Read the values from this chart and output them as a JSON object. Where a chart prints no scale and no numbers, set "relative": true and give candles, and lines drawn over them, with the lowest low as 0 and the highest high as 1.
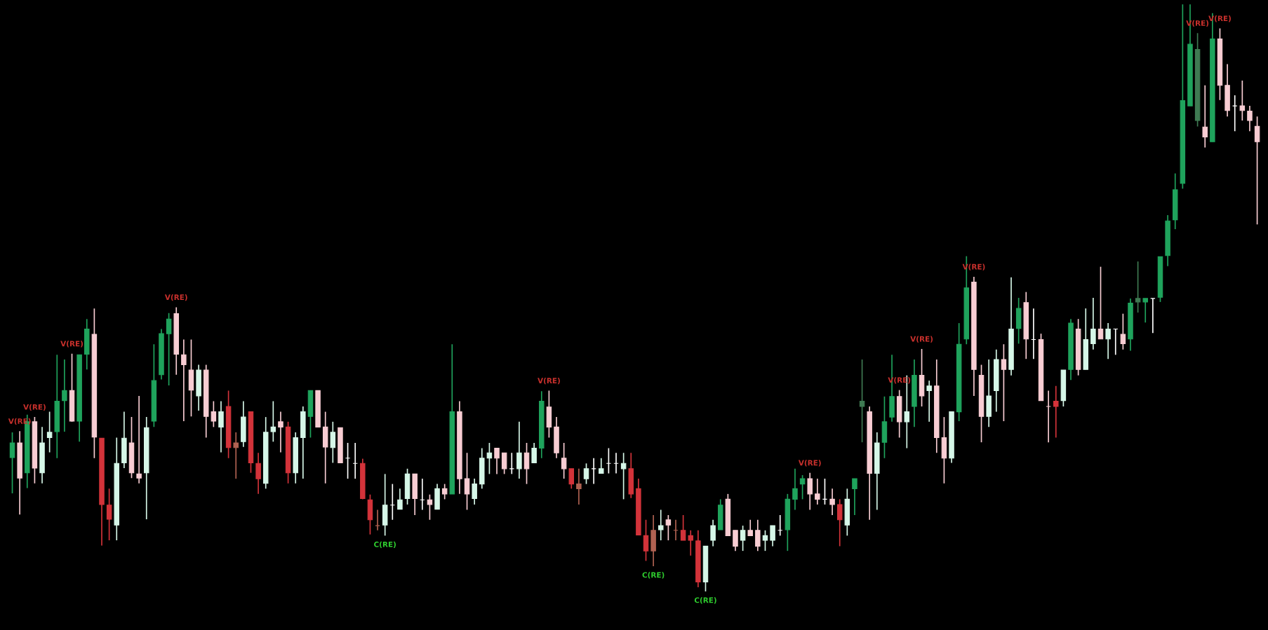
{
  "chart_data": {
    "type": "candlestick",
    "relative": true,
    "categories": [
      null,
      null,
      null,
      null,
      null,
      null,
      null,
      null,
      null,
      null,
      null,
      null,
      null,
      null,
      null,
      null,
      null,
      null,
      null,
      null,
      null,
      null,
      null,
      null,
      null,
      null,
      null,
      null,
      null,
      null,
      null,
      null,
      null,
      null,
      null,
      null,
      null,
      null,
      null,
      null,
      null,
      null,
      null,
      null,
      null,
      null,
      null,
      null,
      null,
      null,
      null,
      null,
      null,
      null,
      null,
      null,
      null,
      null,
      null,
      null,
      null,
      null,
      null,
      null,
      null,
      null,
      null,
      null,
      null,
      null,
      null,
      null,
      null,
      null,
      null,
      null,
      null,
      null,
      null,
      null,
      null,
      null,
      null,
      null,
      null,
      null,
      null,
      null,
      null,
      null,
      null,
      null,
      null,
      null,
      null,
      null,
      null,
      null,
      null,
      null,
      null,
      null,
      null,
      null,
      null,
      null,
      null,
      null,
      null,
      null,
      null,
      null,
      null,
      null,
      null,
      null,
      null,
      null,
      null,
      null,
      null,
      null,
      null,
      null,
      null,
      null,
      null,
      null,
      null,
      null,
      null,
      null,
      null,
      null,
      null,
      null,
      null,
      null,
      null,
      null,
      null,
      null,
      null,
      null,
      null,
      null,
      null,
      null,
      null,
      null,
      null,
      null,
      null,
      null,
      null,
      null,
      null,
      null,
      null,
      null,
      null,
      null,
      null,
      null,
      null,
      null,
      null,
      null
    ],
    "ohlc": [
      [
        0.228,
        0.271,
        0.167,
        0.253
      ],
      [
        0.253,
        0.273,
        0.131,
        0.193
      ],
      [
        0.202,
        0.301,
        0.176,
        0.289
      ],
      [
        0.289,
        0.297,
        0.184,
        0.21
      ],
      [
        0.202,
        0.28,
        0.184,
        0.253
      ],
      [
        0.262,
        0.306,
        0.237,
        0.271
      ],
      [
        0.272,
        0.403,
        0.227,
        0.324
      ],
      [
        0.325,
        0.395,
        0.272,
        0.342
      ],
      [
        0.342,
        0.405,
        0.289,
        0.29
      ],
      [
        0.29,
        0.403,
        0.255,
        0.403
      ],
      [
        0.404,
        0.464,
        0.378,
        0.447
      ],
      [
        0.438,
        0.482,
        0.227,
        0.263
      ],
      [
        0.261,
        0.261,
        0.078,
        0.148
      ],
      [
        0.147,
        0.175,
        0.087,
        0.123
      ],
      [
        0.113,
        0.262,
        0.087,
        0.218
      ],
      [
        0.219,
        0.306,
        0.21,
        0.261
      ],
      [
        0.253,
        0.297,
        0.193,
        0.202
      ],
      [
        0.2,
        0.333,
        0.184,
        0.193
      ],
      [
        0.202,
        0.297,
        0.123,
        0.279
      ],
      [
        0.29,
        0.421,
        0.28,
        0.359
      ],
      [
        0.369,
        0.447,
        0.361,
        0.439
      ],
      [
        0.439,
        0.474,
        0.351,
        0.464
      ],
      [
        0.473,
        0.484,
        0.369,
        0.404
      ],
      [
        0.403,
        0.429,
        0.29,
        0.386
      ],
      [
        0.377,
        0.429,
        0.298,
        0.343
      ],
      [
        0.333,
        0.386,
        0.308,
        0.377
      ],
      [
        0.377,
        0.386,
        0.262,
        0.298
      ],
      [
        0.306,
        0.324,
        0.28,
        0.29
      ],
      [
        0.28,
        0.324,
        0.237,
        0.306
      ],
      [
        0.315,
        0.342,
        0.227,
        0.245
      ],
      [
        0.253,
        0.271,
        0.192,
        0.245
      ],
      [
        0.255,
        0.324,
        0.246,
        0.297
      ],
      [
        0.306,
        0.306,
        0.202,
        0.219
      ],
      [
        0.218,
        0.236,
        0.166,
        0.192
      ],
      [
        0.184,
        0.297,
        0.175,
        0.271
      ],
      [
        0.272,
        0.324,
        0.255,
        0.28
      ],
      [
        0.289,
        0.306,
        0.237,
        0.28
      ],
      [
        0.28,
        0.289,
        0.184,
        0.202
      ],
      [
        0.202,
        0.271,
        0.184,
        0.262
      ],
      [
        0.262,
        0.315,
        0.192,
        0.306
      ],
      [
        0.298,
        0.342,
        0.262,
        0.342
      ],
      [
        0.342,
        0.342,
        0.28,
        0.28
      ],
      [
        0.28,
        0.306,
        0.184,
        0.246
      ],
      [
        0.245,
        0.289,
        0.219,
        0.271
      ],
      [
        0.279,
        0.279,
        0.219,
        0.219
      ],
      [
        0.227,
        0.253,
        0.192,
        0.227
      ],
      [
        0.218,
        0.253,
        0.192,
        0.218
      ],
      [
        0.218,
        0.226,
        0.157,
        0.158
      ],
      [
        0.156,
        0.165,
        0.097,
        0.122
      ],
      [
        0.112,
        0.139,
        0.104,
        0.112
      ],
      [
        0.113,
        0.2,
        0.095,
        0.147
      ],
      [
        0.147,
        0.183,
        0.122,
        0.147
      ],
      [
        0.14,
        0.175,
        0.14,
        0.156
      ],
      [
        0.158,
        0.209,
        0.148,
        0.2
      ],
      [
        0.2,
        0.2,
        0.13,
        0.158
      ],
      [
        0.156,
        0.192,
        0.139,
        0.156
      ],
      [
        0.156,
        0.165,
        0.122,
        0.148
      ],
      [
        0.14,
        0.183,
        0.14,
        0.175
      ],
      [
        0.175,
        0.183,
        0.157,
        0.166
      ],
      [
        0.166,
        0.421,
        0.166,
        0.306
      ],
      [
        0.306,
        0.324,
        0.166,
        0.192
      ],
      [
        0.192,
        0.236,
        0.139,
        0.166
      ],
      [
        0.158,
        0.192,
        0.148,
        0.183
      ],
      [
        0.183,
        0.244,
        0.175,
        0.227
      ],
      [
        0.227,
        0.253,
        0.2,
        0.236
      ],
      [
        0.244,
        0.244,
        0.2,
        0.227
      ],
      [
        0.236,
        0.236,
        0.2,
        0.209
      ],
      [
        0.209,
        0.236,
        0.2,
        0.209
      ],
      [
        0.209,
        0.289,
        0.192,
        0.236
      ],
      [
        0.236,
        0.253,
        0.183,
        0.209
      ],
      [
        0.219,
        0.253,
        0.219,
        0.244
      ],
      [
        0.244,
        0.341,
        0.227,
        0.324
      ],
      [
        0.314,
        0.342,
        0.262,
        0.28
      ],
      [
        0.28,
        0.297,
        0.227,
        0.236
      ],
      [
        0.227,
        0.253,
        0.192,
        0.209
      ],
      [
        0.209,
        0.209,
        0.175,
        0.183
      ],
      [
        0.183,
        0.209,
        0.148,
        0.175
      ],
      [
        0.192,
        0.218,
        0.183,
        0.209
      ],
      [
        0.209,
        0.227,
        0.183,
        0.209
      ],
      [
        0.201,
        0.227,
        0.201,
        0.209
      ],
      [
        0.218,
        0.244,
        0.201,
        0.218
      ],
      [
        0.218,
        0.236,
        0.201,
        0.218
      ],
      [
        0.209,
        0.236,
        0.157,
        0.218
      ],
      [
        0.209,
        0.236,
        0.159,
        0.166
      ],
      [
        0.175,
        0.192,
        0.096,
        0.096
      ],
      [
        0.095,
        0.122,
        0.052,
        0.069
      ],
      [
        0.104,
        0.13,
        0.043,
        0.069
      ],
      [
        0.105,
        0.139,
        0.087,
        0.112
      ],
      [
        0.122,
        0.13,
        0.087,
        0.113
      ],
      [
        0.104,
        0.122,
        0.087,
        0.104
      ],
      [
        0.104,
        0.13,
        0.087,
        0.087
      ],
      [
        0.095,
        0.104,
        0.061,
        0.087
      ],
      [
        0.086,
        0.104,
        0.007,
        0.016
      ],
      [
        0.016,
        0.077,
        0.0,
        0.077
      ],
      [
        0.087,
        0.122,
        0.077,
        0.112
      ],
      [
        0.105,
        0.157,
        0.105,
        0.147
      ],
      [
        0.157,
        0.166,
        0.095,
        0.095
      ],
      [
        0.104,
        0.104,
        0.069,
        0.077
      ],
      [
        0.087,
        0.112,
        0.069,
        0.104
      ],
      [
        0.104,
        0.122,
        0.095,
        0.095
      ],
      [
        0.104,
        0.122,
        0.069,
        0.077
      ],
      [
        0.087,
        0.104,
        0.069,
        0.095
      ],
      [
        0.087,
        0.112,
        0.077,
        0.112
      ],
      [
        0.104,
        0.13,
        0.095,
        0.104
      ],
      [
        0.105,
        0.166,
        0.069,
        0.157
      ],
      [
        0.157,
        0.209,
        0.139,
        0.175
      ],
      [
        0.183,
        0.198,
        0.157,
        0.192
      ],
      [
        0.192,
        0.202,
        0.139,
        0.166
      ],
      [
        0.166,
        0.192,
        0.148,
        0.157
      ],
      [
        0.157,
        0.192,
        0.148,
        0.157
      ],
      [
        0.157,
        0.175,
        0.13,
        0.148
      ],
      [
        0.148,
        0.157,
        0.077,
        0.122
      ],
      [
        0.113,
        0.175,
        0.095,
        0.157
      ],
      [
        0.175,
        0.192,
        0.13,
        0.192
      ],
      [
        0.315,
        0.395,
        0.254,
        0.324
      ],
      [
        0.306,
        0.315,
        0.122,
        0.201
      ],
      [
        0.201,
        0.271,
        0.139,
        0.253
      ],
      [
        0.254,
        0.332,
        0.227,
        0.289
      ],
      [
        0.297,
        0.403,
        0.289,
        0.332
      ],
      [
        0.332,
        0.343,
        0.262,
        0.289
      ],
      [
        0.289,
        0.368,
        0.244,
        0.306
      ],
      [
        0.315,
        0.395,
        0.28,
        0.368
      ],
      [
        0.368,
        0.413,
        0.315,
        0.333
      ],
      [
        0.342,
        0.359,
        0.289,
        0.35
      ],
      [
        0.35,
        0.395,
        0.236,
        0.262
      ],
      [
        0.262,
        0.297,
        0.184,
        0.227
      ],
      [
        0.227,
        0.306,
        0.219,
        0.306
      ],
      [
        0.306,
        0.457,
        0.29,
        0.421
      ],
      [
        0.43,
        0.571,
        0.421,
        0.517
      ],
      [
        0.527,
        0.536,
        0.333,
        0.378
      ],
      [
        0.368,
        0.386,
        0.254,
        0.298
      ],
      [
        0.298,
        0.395,
        0.28,
        0.333
      ],
      [
        0.342,
        0.412,
        0.306,
        0.395
      ],
      [
        0.395,
        0.421,
        0.29,
        0.378
      ],
      [
        0.378,
        0.535,
        0.368,
        0.447
      ],
      [
        0.448,
        0.5,
        0.422,
        0.482
      ],
      [
        0.492,
        0.51,
        0.396,
        0.43
      ],
      [
        0.429,
        0.482,
        0.396,
        0.429
      ],
      [
        0.429,
        0.439,
        0.325,
        0.325
      ],
      [
        0.315,
        0.342,
        0.254,
        0.315
      ],
      [
        0.324,
        0.35,
        0.262,
        0.315
      ],
      [
        0.325,
        0.377,
        0.315,
        0.377
      ],
      [
        0.378,
        0.464,
        0.36,
        0.457
      ],
      [
        0.447,
        0.464,
        0.368,
        0.378
      ],
      [
        0.378,
        0.482,
        0.378,
        0.429
      ],
      [
        0.422,
        0.5,
        0.412,
        0.447
      ],
      [
        0.447,
        0.553,
        0.43,
        0.43
      ],
      [
        0.43,
        0.457,
        0.396,
        0.447
      ],
      [
        0.447,
        0.447,
        0.403,
        0.447
      ],
      [
        0.438,
        0.473,
        0.412,
        0.422
      ],
      [
        0.43,
        0.499,
        0.41,
        0.491
      ],
      [
        0.493,
        0.562,
        0.475,
        0.499
      ],
      [
        0.493,
        0.499,
        0.458,
        0.499
      ],
      [
        0.499,
        0.499,
        0.44,
        0.499
      ],
      [
        0.501,
        0.57,
        0.493,
        0.57
      ],
      [
        0.572,
        0.641,
        0.554,
        0.631
      ],
      [
        0.633,
        0.712,
        0.617,
        0.684
      ],
      [
        0.695,
        1.0,
        0.686,
        0.836
      ],
      [
        0.827,
        1.0,
        0.827,
        0.932
      ],
      [
        0.802,
        0.951,
        0.792,
        0.923
      ],
      [
        0.791,
        0.862,
        0.756,
        0.774
      ],
      [
        0.766,
        0.985,
        0.766,
        0.941
      ],
      [
        0.941,
        0.959,
        0.837,
        0.862
      ],
      [
        0.862,
        0.898,
        0.809,
        0.819
      ],
      [
        0.827,
        0.845,
        0.784,
        0.827
      ],
      [
        0.827,
        0.87,
        0.802,
        0.819
      ],
      [
        0.818,
        0.827,
        0.784,
        0.802
      ],
      [
        0.792,
        0.809,
        0.625,
        0.766
      ]
    ],
    "colors": [
      "#1fa35c",
      "#f8cdd3",
      "#1fa35c",
      "#f8cdd3",
      "#d6f7e8",
      "#d6f7e8",
      "#1fa35c",
      "#1fa35c",
      "#f8cdd3",
      "#1fa35c",
      "#1fa35c",
      "#f8cdd3",
      "#d3333a",
      "#d3333a",
      "#d6f7e8",
      "#d6f7e8",
      "#f8cdd3",
      "#f8cdd3",
      "#d6f7e8",
      "#1fa35c",
      "#1fa35c",
      "#1fa35c",
      "#f8cdd3",
      "#f8cdd3",
      "#f8cdd3",
      "#d6f7e8",
      "#f8cdd3",
      "#f8cdd3",
      "#d6f7e8",
      "#d3333a",
      "#b06252",
      "#d6f7e8",
      "#d3333a",
      "#d3333a",
      "#d6f7e8",
      "#d6f7e8",
      "#f8cdd3",
      "#d3333a",
      "#d6f7e8",
      "#d6f7e8",
      "#1fa35c",
      "#f8cdd3",
      "#f8cdd3",
      "#d6f7e8",
      "#f8cdd3",
      "#ffffff",
      "#ffffff",
      "#d3333a",
      "#d3333a",
      "#b06252",
      "#d6f7e8",
      "#ffffff",
      "#d6f7e8",
      "#d6f7e8",
      "#f8cdd3",
      "#ffffff",
      "#f8cdd3",
      "#d6f7e8",
      "#f8cdd3",
      "#1fa35c",
      "#f8cdd3",
      "#f8cdd3",
      "#d6f7e8",
      "#d6f7e8",
      "#d6f7e8",
      "#f8cdd3",
      "#f8cdd3",
      "#ffffff",
      "#d6f7e8",
      "#f8cdd3",
      "#d6f7e8",
      "#1fa35c",
      "#f8cdd3",
      "#f8cdd3",
      "#f8cdd3",
      "#d3333a",
      "#b06252",
      "#d6f7e8",
      "#ffffff",
      "#d6f7e8",
      "#ffffff",
      "#ffffff",
      "#d6f7e8",
      "#d3333a",
      "#d3333a",
      "#d3333a",
      "#b06252",
      "#d6f7e8",
      "#f8cdd3",
      "#b06252",
      "#d3333a",
      "#d3333a",
      "#d3333a",
      "#d6f7e8",
      "#d6f7e8",
      "#1fa35c",
      "#f8cdd3",
      "#f8cdd3",
      "#d6f7e8",
      "#f8cdd3",
      "#f8cdd3",
      "#d6f7e8",
      "#d6f7e8",
      "#ffffff",
      "#1fa35c",
      "#1fa35c",
      "#1fa35c",
      "#f8cdd3",
      "#f8cdd3",
      "#ffffff",
      "#f8cdd3",
      "#d3333a",
      "#d6f7e8",
      "#1fa35c",
      "#3f7a52",
      "#f8cdd3",
      "#d6f7e8",
      "#1fa35c",
      "#1fa35c",
      "#f8cdd3",
      "#d6f7e8",
      "#1fa35c",
      "#f8cdd3",
      "#d6f7e8",
      "#f8cdd3",
      "#f8cdd3",
      "#d6f7e8",
      "#1fa35c",
      "#1fa35c",
      "#f8cdd3",
      "#f8cdd3",
      "#d6f7e8",
      "#d6f7e8",
      "#f8cdd3",
      "#d6f7e8",
      "#1fa35c",
      "#f8cdd3",
      "#ffffff",
      "#f8cdd3",
      "#f8cdd3",
      "#d3333a",
      "#d6f7e8",
      "#1fa35c",
      "#f8cdd3",
      "#d6f7e8",
      "#d6f7e8",
      "#f8cdd3",
      "#d6f7e8",
      "#ffffff",
      "#f8cdd3",
      "#1fa35c",
      "#3f7a52",
      "#1fa35c",
      "#ffffff",
      "#1fa35c",
      "#1fa35c",
      "#1fa35c",
      "#1fa35c",
      "#1fa35c",
      "#3f7a52",
      "#f8cdd3",
      "#1fa35c",
      "#f8cdd3",
      "#f8cdd3",
      "#ffffff",
      "#f8cdd3",
      "#f8cdd3",
      "#f8cdd3"
    ],
    "annotations": [
      {
        "text": "V(RE)",
        "y": 0.273
      },
      {
        "text": "V(RE)",
        "y": 0.297
      },
      {
        "text": "V(RE)",
        "y": 0.405
      },
      {
        "text": "V(RE)",
        "y": 0.484
      },
      {
        "text": "C(RE)",
        "y": 0.095
      },
      {
        "text": "V(RE)",
        "y": 0.342
      },
      {
        "text": "C(RE)",
        "y": 0.043
      },
      {
        "text": "C(RE)",
        "y": 0.0
      },
      {
        "text": "V(RE)",
        "y": 0.202
      },
      {
        "text": "V(RE)",
        "y": 0.343
      },
      {
        "text": "V(RE)",
        "y": 0.413
      },
      {
        "text": "V(RE)",
        "y": 0.536
      },
      {
        "text": "V(RE)",
        "y": 0.951
      },
      {
        "text": "V(RE)",
        "y": 0.959
      }
    ]
  }
}
